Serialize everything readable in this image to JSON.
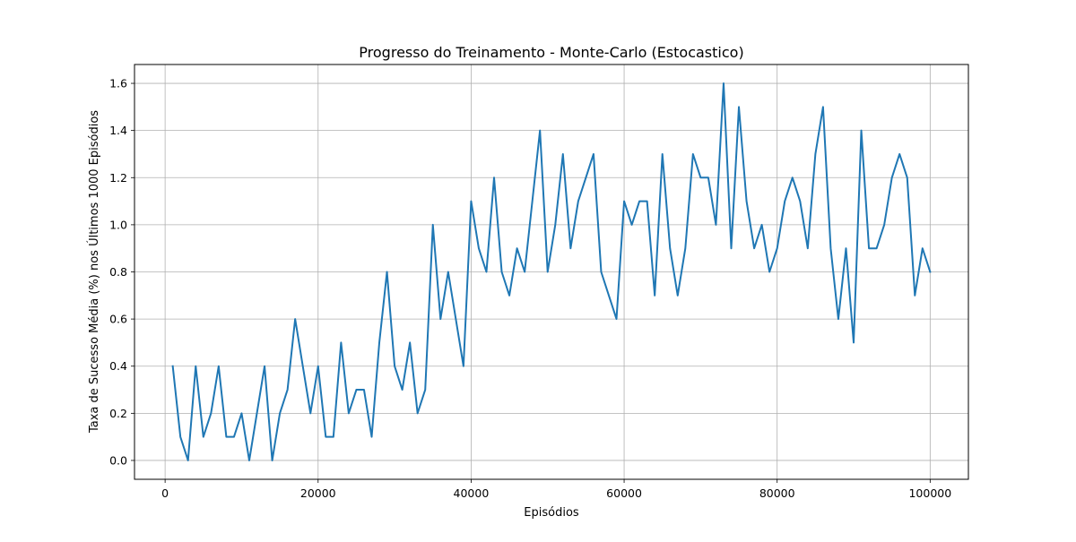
{
  "chart_data": {
    "type": "line",
    "title": "Progresso do Treinamento - Monte-Carlo (Estocastico)",
    "xlabel": "Episódios",
    "ylabel": "Taxa de Sucesso Média (%) nos Últimos 1000 Episódios",
    "xlim": [
      -4000,
      105000
    ],
    "ylim": [
      -0.08,
      1.68
    ],
    "x_ticks": [
      0,
      20000,
      40000,
      60000,
      80000,
      100000
    ],
    "x_tick_labels": [
      "0",
      "20000",
      "40000",
      "60000",
      "80000",
      "100000"
    ],
    "y_ticks": [
      0.0,
      0.2,
      0.4,
      0.6,
      0.8,
      1.0,
      1.2,
      1.4,
      1.6
    ],
    "y_tick_labels": [
      "0.0",
      "0.2",
      "0.4",
      "0.6",
      "0.8",
      "1.0",
      "1.2",
      "1.4",
      "1.6"
    ],
    "grid": true,
    "series": [
      {
        "color": "#1f77b4",
        "x": [
          1000,
          2000,
          3000,
          4000,
          5000,
          6000,
          7000,
          8000,
          9000,
          10000,
          11000,
          12000,
          13000,
          14000,
          15000,
          16000,
          17000,
          18000,
          19000,
          20000,
          21000,
          22000,
          23000,
          24000,
          25000,
          26000,
          27000,
          28000,
          29000,
          30000,
          31000,
          32000,
          33000,
          34000,
          35000,
          36000,
          37000,
          38000,
          39000,
          40000,
          41000,
          42000,
          43000,
          44000,
          45000,
          46000,
          47000,
          48000,
          49000,
          50000,
          51000,
          52000,
          53000,
          54000,
          55000,
          56000,
          57000,
          58000,
          59000,
          60000,
          61000,
          62000,
          63000,
          64000,
          65000,
          66000,
          67000,
          68000,
          69000,
          70000,
          71000,
          72000,
          73000,
          74000,
          75000,
          76000,
          77000,
          78000,
          79000,
          80000,
          81000,
          82000,
          83000,
          84000,
          85000,
          86000,
          87000,
          88000,
          89000,
          90000,
          91000,
          92000,
          93000,
          94000,
          95000,
          96000,
          97000,
          98000,
          99000,
          100000
        ],
        "y": [
          0.4,
          0.1,
          0.0,
          0.4,
          0.1,
          0.2,
          0.4,
          0.1,
          0.1,
          0.2,
          0.0,
          0.2,
          0.4,
          0.0,
          0.2,
          0.3,
          0.6,
          0.4,
          0.2,
          0.4,
          0.1,
          0.1,
          0.5,
          0.2,
          0.3,
          0.3,
          0.1,
          0.5,
          0.8,
          0.4,
          0.3,
          0.5,
          0.2,
          0.3,
          1.0,
          0.6,
          0.8,
          0.6,
          0.4,
          1.1,
          0.9,
          0.8,
          1.2,
          0.8,
          0.7,
          0.9,
          0.8,
          1.1,
          1.4,
          0.8,
          1.0,
          1.3,
          0.9,
          1.1,
          1.2,
          1.3,
          0.8,
          0.7,
          0.6,
          1.1,
          1.0,
          1.1,
          1.1,
          0.7,
          1.3,
          0.9,
          0.7,
          0.9,
          1.3,
          1.2,
          1.2,
          1.0,
          1.6,
          0.9,
          1.5,
          1.1,
          0.9,
          1.0,
          0.8,
          0.9,
          1.1,
          1.2,
          1.1,
          0.9,
          1.3,
          1.5,
          0.9,
          0.6,
          0.9,
          0.5,
          1.4,
          0.9,
          0.9,
          1.0,
          1.2,
          1.3,
          1.2,
          0.7,
          0.9,
          0.8
        ]
      }
    ]
  }
}
